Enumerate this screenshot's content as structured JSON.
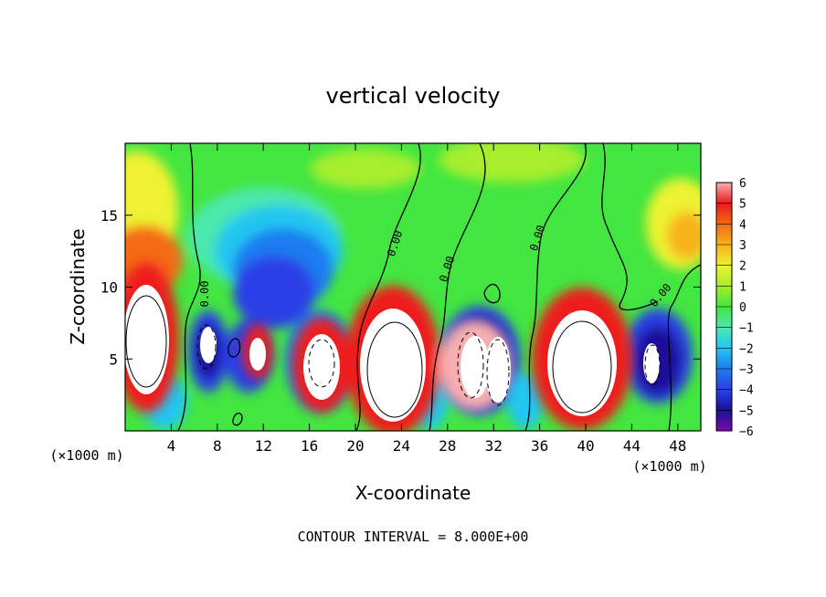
{
  "chart_data": {
    "type": "heatmap",
    "title": "vertical velocity",
    "xlabel": "X-coordinate",
    "ylabel": "Z-coordinate",
    "x_unit": "(×1000 m)",
    "x_unit_right": "(×1000 m)",
    "xlim": [
      0,
      50
    ],
    "ylim": [
      0,
      20
    ],
    "xticks": [
      "4",
      "8",
      "12",
      "16",
      "20",
      "24",
      "28",
      "32",
      "36",
      "40",
      "44",
      "48"
    ],
    "yticks": [
      "5",
      "10",
      "15"
    ],
    "colorbar": {
      "ticks": [
        "6",
        "5",
        "4",
        "3",
        "2",
        "1",
        "0",
        "−1",
        "−2",
        "−3",
        "−4",
        "−5",
        "−6"
      ],
      "min": -6,
      "max": 6,
      "colors": [
        "#7a0ca6",
        "#1a0f9a",
        "#2a3fe6",
        "#1f7cf0",
        "#22c6f2",
        "#4be8ae",
        "#43e640",
        "#a6ee2e",
        "#eef230",
        "#f8b21c",
        "#f46a12",
        "#ee1a1a",
        "#f6aeb0"
      ]
    },
    "contour_labels": [
      "0.00",
      "0.00",
      "0.00",
      "0.00",
      "0.00",
      "0.00"
    ],
    "contour_interval_text": "CONTOUR INTERVAL =  8.000E+00"
  }
}
